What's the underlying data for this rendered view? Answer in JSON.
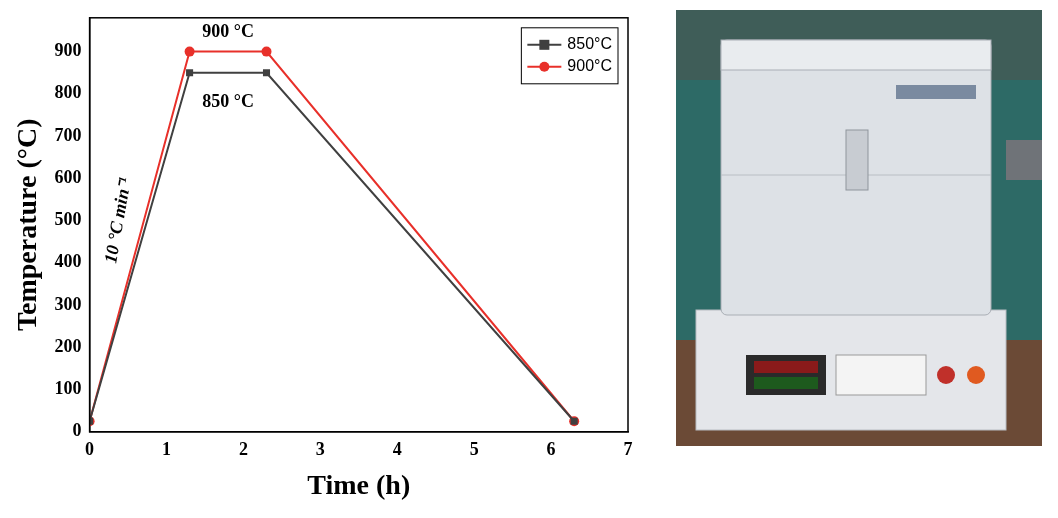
{
  "chart_data": {
    "type": "line",
    "x_label": "Time (h)",
    "y_label": "Temperature (°C)",
    "series": [
      {
        "name": "850°C",
        "color": "#404040",
        "marker": "square",
        "line_style": "solid",
        "x": [
          0,
          1.3,
          2.3,
          6.3
        ],
        "values": [
          25,
          850,
          850,
          25
        ]
      },
      {
        "name": "900°C",
        "color": "#e8302a",
        "marker": "circle",
        "line_style": "solid",
        "x": [
          0,
          1.3,
          2.3,
          6.3
        ],
        "values": [
          25,
          900,
          900,
          25
        ]
      }
    ],
    "xlim": [
      0,
      7
    ],
    "xticks": [
      0,
      1,
      2,
      3,
      4,
      5,
      6,
      7
    ],
    "ylim": [
      0,
      980
    ],
    "yticks": [
      0,
      100,
      200,
      300,
      400,
      500,
      600,
      700,
      800,
      900
    ],
    "grid": false,
    "legend": "upper right",
    "annotations": [
      {
        "text": "900 °C",
        "x": 1.8,
        "y": 945
      },
      {
        "text": "850 °C",
        "x": 1.8,
        "y": 780
      },
      {
        "text": "10 °C min⁻¹",
        "x": 0.38,
        "y": 500
      }
    ]
  }
}
